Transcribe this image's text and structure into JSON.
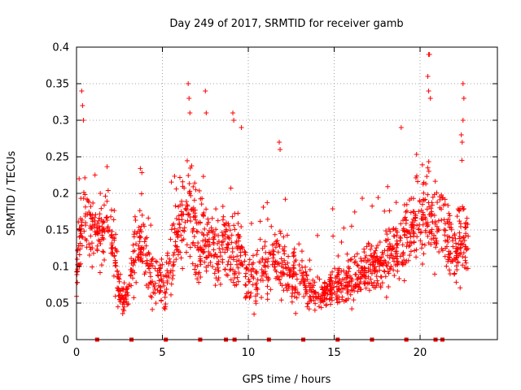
{
  "chart_data": {
    "type": "scatter",
    "title": "Day 249 of 2017, SRMTID for receiver gamb",
    "xlabel": "GPS time / hours",
    "ylabel": "SRMTID / TECUs",
    "xlim": [
      0,
      24.5
    ],
    "ylim": [
      0,
      0.4
    ],
    "xticks": [
      0,
      5,
      10,
      15,
      20
    ],
    "yticks": [
      0,
      0.05,
      0.1,
      0.15,
      0.2,
      0.25,
      0.3,
      0.35,
      0.4
    ],
    "xtick_labels": [
      "0",
      "5",
      "10",
      "15",
      "20"
    ],
    "ytick_labels": [
      "0",
      "0.05",
      "0.1",
      "0.15",
      "0.2",
      "0.25",
      "0.3",
      "0.35",
      "0.4"
    ],
    "grid": true,
    "marker": "+",
    "color": "#ff0000",
    "profile_x": [
      0.0,
      0.3,
      0.6,
      1.0,
      1.5,
      1.8,
      2.2,
      2.5,
      3.0,
      3.4,
      3.8,
      4.2,
      4.7,
      5.2,
      5.6,
      6.0,
      6.5,
      7.0,
      7.5,
      8.0,
      8.5,
      9.0,
      9.5,
      10.0,
      10.5,
      11.0,
      11.5,
      12.0,
      12.5,
      13.0,
      13.5,
      14.0,
      14.5,
      15.0,
      15.5,
      16.0,
      16.5,
      17.0,
      17.5,
      18.0,
      18.5,
      19.0,
      19.5,
      20.0,
      20.5,
      21.0,
      21.5,
      22.0,
      22.5,
      22.8
    ],
    "profile_y": [
      0.08,
      0.16,
      0.17,
      0.14,
      0.15,
      0.16,
      0.12,
      0.06,
      0.06,
      0.12,
      0.13,
      0.09,
      0.08,
      0.07,
      0.12,
      0.15,
      0.18,
      0.14,
      0.13,
      0.12,
      0.13,
      0.12,
      0.11,
      0.09,
      0.09,
      0.1,
      0.11,
      0.1,
      0.09,
      0.09,
      0.08,
      0.06,
      0.06,
      0.08,
      0.07,
      0.08,
      0.09,
      0.1,
      0.1,
      0.11,
      0.12,
      0.14,
      0.15,
      0.17,
      0.18,
      0.15,
      0.14,
      0.11,
      0.14,
      0.14
    ],
    "profile_spread": [
      0.03,
      0.05,
      0.05,
      0.04,
      0.04,
      0.04,
      0.05,
      0.02,
      0.02,
      0.04,
      0.04,
      0.03,
      0.03,
      0.03,
      0.04,
      0.05,
      0.06,
      0.05,
      0.05,
      0.04,
      0.05,
      0.05,
      0.05,
      0.04,
      0.04,
      0.04,
      0.04,
      0.04,
      0.04,
      0.04,
      0.03,
      0.02,
      0.02,
      0.03,
      0.03,
      0.03,
      0.03,
      0.03,
      0.03,
      0.04,
      0.04,
      0.05,
      0.05,
      0.05,
      0.06,
      0.05,
      0.05,
      0.04,
      0.05,
      0.04
    ],
    "outliers": [
      {
        "x": 0.3,
        "y": 0.34
      },
      {
        "x": 0.35,
        "y": 0.32
      },
      {
        "x": 0.4,
        "y": 0.3
      },
      {
        "x": 6.5,
        "y": 0.35
      },
      {
        "x": 6.55,
        "y": 0.33
      },
      {
        "x": 6.6,
        "y": 0.31
      },
      {
        "x": 7.5,
        "y": 0.34
      },
      {
        "x": 7.55,
        "y": 0.31
      },
      {
        "x": 9.1,
        "y": 0.31
      },
      {
        "x": 9.15,
        "y": 0.3
      },
      {
        "x": 9.6,
        "y": 0.29
      },
      {
        "x": 11.8,
        "y": 0.27
      },
      {
        "x": 11.85,
        "y": 0.26
      },
      {
        "x": 18.9,
        "y": 0.29
      },
      {
        "x": 20.5,
        "y": 0.39
      },
      {
        "x": 20.55,
        "y": 0.39
      },
      {
        "x": 20.45,
        "y": 0.36
      },
      {
        "x": 20.5,
        "y": 0.34
      },
      {
        "x": 20.6,
        "y": 0.33
      },
      {
        "x": 22.5,
        "y": 0.35
      },
      {
        "x": 22.55,
        "y": 0.33
      },
      {
        "x": 22.5,
        "y": 0.3
      },
      {
        "x": 22.4,
        "y": 0.28
      },
      {
        "x": 22.45,
        "y": 0.27
      }
    ],
    "gap_markers_x": [
      1.2,
      3.2,
      5.2,
      7.2,
      8.7,
      9.2,
      11.2,
      13.2,
      15.2,
      17.2,
      19.2,
      20.9,
      21.3
    ]
  }
}
